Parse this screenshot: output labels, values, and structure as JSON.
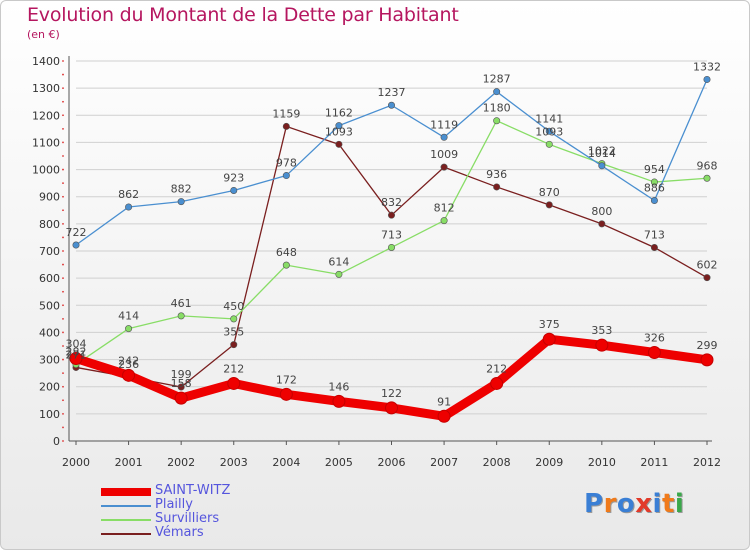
{
  "header": {
    "title": "Evolution du Montant de la Dette par Habitant",
    "subtitle": "(en €)"
  },
  "logo": {
    "text": "Proxiti",
    "letter_colors": [
      "#3a7fd5",
      "#f07a1a",
      "#3a7fd5",
      "#e23a2a",
      "#3a7fd5",
      "#f07a1a",
      "#3aa84a"
    ]
  },
  "chart_data": {
    "type": "line",
    "title": "Evolution du Montant de la Dette par Habitant",
    "subtitle": "(en €)",
    "xlabel": "",
    "ylabel": "",
    "x": [
      "2000",
      "2001",
      "2002",
      "2003",
      "2004",
      "2005",
      "2006",
      "2007",
      "2008",
      "2009",
      "2010",
      "2011",
      "2012"
    ],
    "ylim": [
      0,
      1400
    ],
    "yticks": [
      0,
      100,
      200,
      300,
      400,
      500,
      600,
      700,
      800,
      900,
      1000,
      1100,
      1200,
      1300,
      1400
    ],
    "grid": "horizontal",
    "legend_position": "bottom-left",
    "series": [
      {
        "name": "Vémars",
        "color": "#7a1f1f",
        "values": [
          271,
          236,
          199,
          355,
          1159,
          1093,
          832,
          1009,
          936,
          870,
          800,
          713,
          602
        ],
        "labels": [
          "271",
          "236",
          "199",
          "355",
          "1159",
          "1093",
          "832",
          "1009",
          "936",
          "870",
          "800",
          "713",
          "602"
        ]
      },
      {
        "name": "Survilliers",
        "color": "#88dd66",
        "values": [
          282,
          414,
          461,
          450,
          648,
          614,
          713,
          812,
          1180,
          1093,
          1022,
          954,
          968
        ],
        "labels": [
          "282",
          "414",
          "461",
          "450",
          "648",
          "614",
          "713",
          "812",
          "1180",
          "1093",
          "1022",
          "954",
          "968"
        ]
      },
      {
        "name": "Plailly",
        "color": "#4a8fd0",
        "values": [
          722,
          862,
          882,
          923,
          978,
          1162,
          1237,
          1119,
          1287,
          1141,
          1014,
          886,
          1332
        ],
        "labels": [
          "722",
          "862",
          "882",
          "923",
          "978",
          "1162",
          "1237",
          "1119",
          "1287",
          "1141",
          "1014",
          "886",
          "1332"
        ]
      },
      {
        "name": "SAINT-WITZ",
        "color": "#ee0000",
        "values": [
          304,
          242,
          158,
          212,
          172,
          146,
          122,
          91,
          212,
          375,
          353,
          326,
          299
        ],
        "labels": [
          "304",
          "242",
          "158",
          "212",
          "172",
          "146",
          "122",
          "91",
          "212",
          "375",
          "353",
          "326",
          "299"
        ]
      }
    ],
    "legend": [
      "SAINT-WITZ",
      "Plailly",
      "Survilliers",
      "Vémars"
    ]
  }
}
